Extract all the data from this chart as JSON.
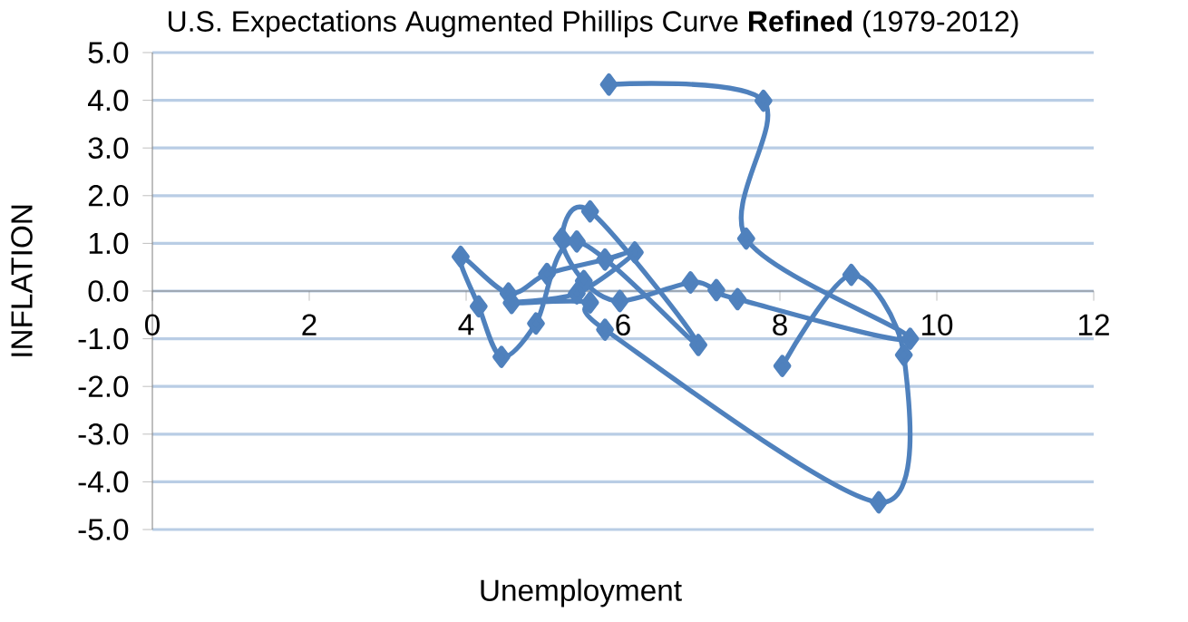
{
  "chart_data": {
    "type": "line",
    "title": "U.S. Expectations Augmented Phillips Curve **Refined** (1979-2012)",
    "xlabel": "Unemployment",
    "ylabel": "INFLATION",
    "x": [
      5.82,
      7.79,
      7.57,
      9.66,
      7.46,
      7.19,
      6.86,
      5.96,
      5.5,
      5.22,
      5.58,
      6.96,
      5.41,
      4.89,
      4.45,
      4.16,
      3.93,
      4.54,
      5.03,
      5.77,
      6.15,
      5.41,
      4.58,
      5.58,
      5.77,
      9.26,
      9.58,
      8.91,
      8.03
    ],
    "values": [
      4.33,
      3.99,
      1.1,
      -1.0,
      -0.17,
      0.02,
      0.18,
      -0.21,
      0.21,
      1.1,
      1.67,
      -1.13,
      1.04,
      -0.68,
      -1.38,
      -0.32,
      0.72,
      -0.05,
      0.36,
      0.66,
      0.81,
      -0.05,
      -0.25,
      -0.24,
      -0.81,
      -4.43,
      -1.34,
      0.34,
      -1.57
    ],
    "color": "#4f81bd",
    "marker": "diamond",
    "line_style": "solid",
    "grid": "y",
    "xlim": [
      0,
      12
    ],
    "xticks": [
      0,
      2,
      4,
      6,
      8,
      10,
      12
    ],
    "ylim": [
      -5,
      5
    ],
    "yticks": [
      {
        "value": -5,
        "label": "-5.0"
      },
      {
        "value": -4,
        "label": "-4.0"
      },
      {
        "value": -3,
        "label": "-3.0"
      },
      {
        "value": -2,
        "label": "-2.0"
      },
      {
        "value": -1,
        "label": "-1.0"
      },
      {
        "value": 0,
        "label": "0.0"
      },
      {
        "value": 1,
        "label": "1.0"
      },
      {
        "value": 2,
        "label": "2.0"
      },
      {
        "value": 3,
        "label": "3.0"
      },
      {
        "value": 4,
        "label": "4.0"
      },
      {
        "value": 5,
        "label": "5.0"
      }
    ]
  }
}
